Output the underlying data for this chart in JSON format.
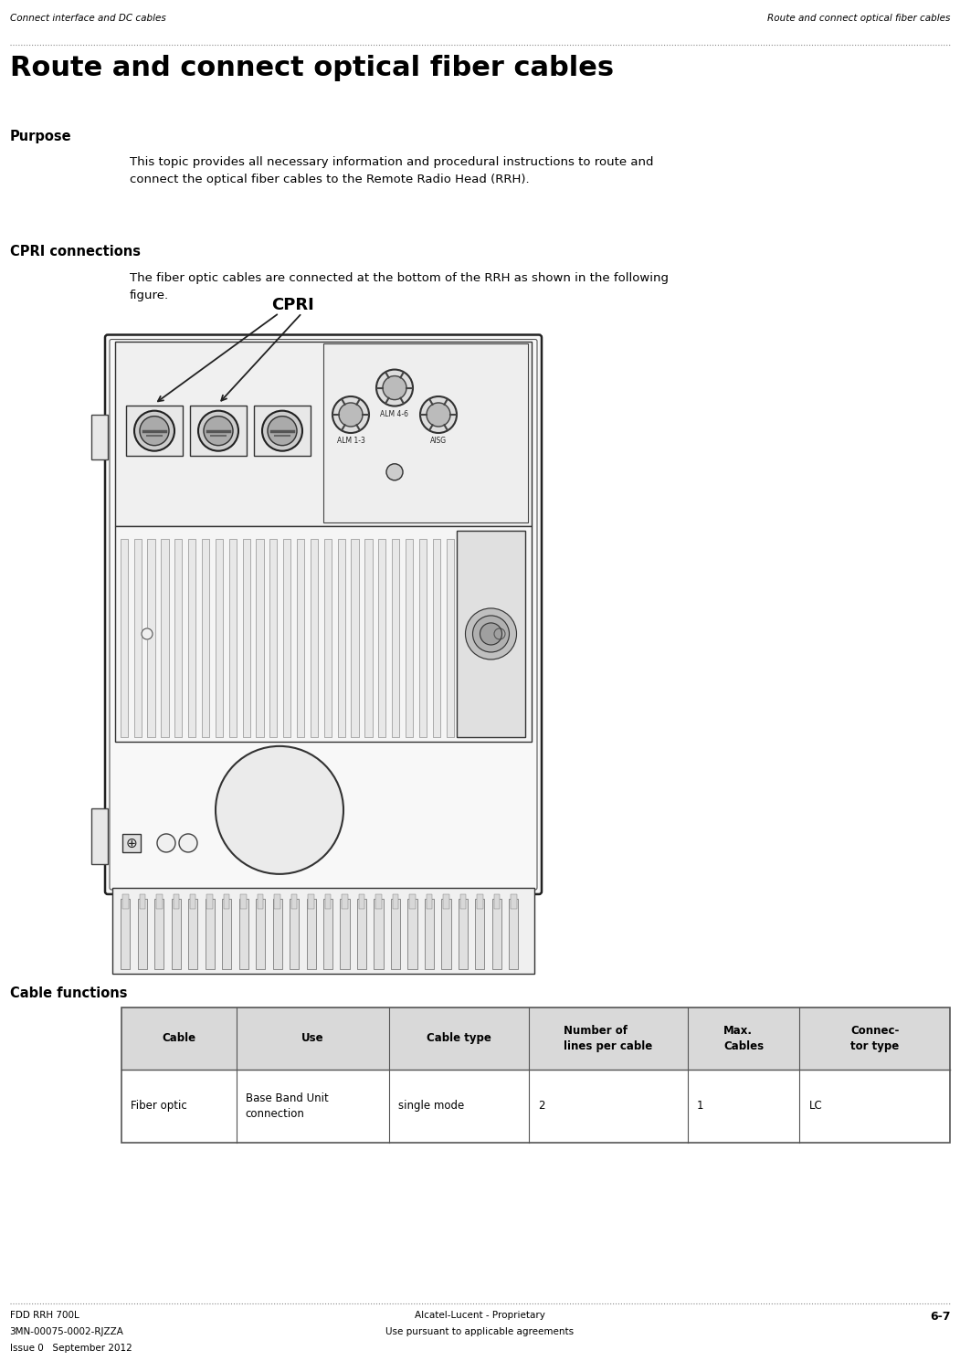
{
  "page_width": 10.51,
  "page_height": 14.9,
  "bg_color": "#ffffff",
  "header_left": "Connect interface and DC cables",
  "header_right": "Route and connect optical fiber cables",
  "title": "Route and connect optical fiber cables",
  "purpose_heading": "Purpose",
  "purpose_text": "This topic provides all necessary information and procedural instructions to route and\nconnect the optical fiber cables to the Remote Radio Head (RRH).",
  "cpri_heading": "CPRI connections",
  "cpri_text": "The fiber optic cables are connected at the bottom of the RRH as shown in the following\nfigure.",
  "cpri_label": "CPRI",
  "cable_heading": "Cable functions",
  "table_headers": [
    "Cable",
    "Use",
    "Cable type",
    "Number of\nlines per cable",
    "Max.\nCables",
    "Connec-\ntor type"
  ],
  "table_row": [
    "Fiber optic",
    "Base Band Unit\nconnection",
    "single mode",
    "2",
    "1",
    "LC"
  ],
  "footer_left1": "FDD RRH 700L",
  "footer_left2": "3MN-00075-0002-RJZZA",
  "footer_left3": "Issue 0   September 2012",
  "footer_center1": "Alcatel-Lucent - Proprietary",
  "footer_center2": "Use pursuant to applicable agreements",
  "footer_right": "6-7",
  "table_header_bg": "#d9d9d9",
  "table_border_color": "#555555",
  "text_color": "#000000",
  "dotted_line_color": "#888888",
  "fig_color": "#ffffff",
  "fig_edge_color": "#222222"
}
